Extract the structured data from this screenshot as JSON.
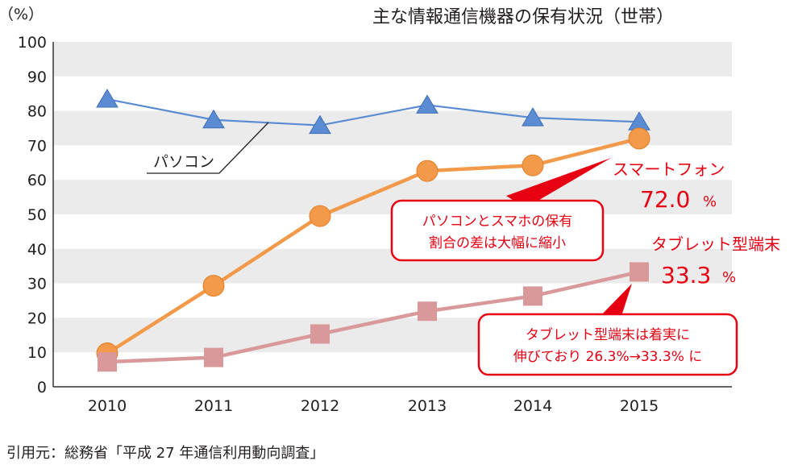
{
  "chart_data": {
    "type": "line",
    "title": "主な情報通信機器の保有状況（世帯）",
    "yunit": "（%）",
    "categories": [
      "2010",
      "2011",
      "2012",
      "2013",
      "2014",
      "2015"
    ],
    "ylim": [
      0,
      100
    ],
    "yticks": [
      0,
      10,
      20,
      30,
      40,
      50,
      60,
      70,
      80,
      90,
      100
    ],
    "series": [
      {
        "name": "パソコン",
        "marker": "triangle",
        "color": "#5b8bd2",
        "values": [
          83.4,
          77.4,
          75.8,
          81.7,
          78.0,
          76.8
        ]
      },
      {
        "name": "スマートフォン",
        "marker": "circle",
        "color": "#f29a4a",
        "values": [
          9.7,
          29.3,
          49.5,
          62.6,
          64.2,
          72.0
        ]
      },
      {
        "name": "タブレット型端末",
        "marker": "square",
        "color": "#d9999b",
        "values": [
          7.2,
          8.5,
          15.3,
          21.9,
          26.3,
          33.3
        ]
      }
    ],
    "annotations": {
      "pc_label": "パソコン",
      "sp_label": "スマートフォン",
      "sp_value": "72.0",
      "sp_unit": "%",
      "tab_label": "タブレット型端末",
      "tab_value": "33.3",
      "tab_unit": "%",
      "callout1_line1": "パソコンとスマホの保有",
      "callout1_line2": "割合の差は大幅に縮小",
      "callout2_line1": "タブレット型端末は着実に",
      "callout2_line2": "伸びており 26.3%→33.3% に"
    }
  },
  "source": "引用元：総務省「平成 27 年通信利用動向調査」"
}
